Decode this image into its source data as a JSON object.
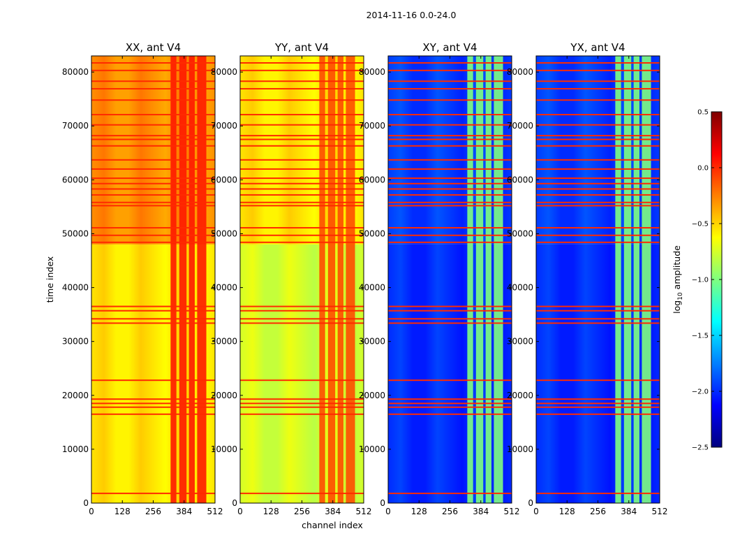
{
  "figure": {
    "suptitle": "2014-11-16 0.0-24.0",
    "xlabel": "channel index",
    "ylabel": "time index",
    "colorbar_label": "log10 amplitude",
    "colorbar_label_base": "log",
    "colorbar_label_sub": "10",
    "colorbar_label_rest": " amplitude",
    "colormap": "jet",
    "colormap_stops": [
      "#00007f",
      "#0000ff",
      "#007fff",
      "#00ffff",
      "#7fff7f",
      "#ffff00",
      "#ff7f00",
      "#ff0000",
      "#7f0000"
    ]
  },
  "chart_data": {
    "type": "heatmap",
    "x_range": [
      0,
      512
    ],
    "y_range": [
      0,
      83000
    ],
    "x_ticks": [
      0,
      128,
      256,
      384,
      512
    ],
    "x_tick_labels": [
      "0",
      "128",
      "256",
      "384",
      "512"
    ],
    "y_ticks": [
      0,
      10000,
      20000,
      30000,
      40000,
      50000,
      60000,
      70000,
      80000
    ],
    "y_tick_labels": [
      "0",
      "10000",
      "20000",
      "30000",
      "40000",
      "50000",
      "60000",
      "70000",
      "80000"
    ],
    "color_range": [
      -2.5,
      0.5
    ],
    "color_ticks": [
      0.5,
      0.0,
      -0.5,
      -1.0,
      -1.5,
      -2.0,
      -2.5
    ],
    "color_tick_labels": [
      "0.5",
      "0.0",
      "−0.5",
      "−1.0",
      "−1.5",
      "−2.0",
      "−2.5"
    ],
    "panels": [
      {
        "title": "XX, ant V4",
        "base_low": -0.55,
        "base_high": -0.3,
        "change_time": 48000,
        "band_value": 0.05
      },
      {
        "title": "YY, ant V4",
        "base_low": -0.75,
        "base_high": -0.55,
        "change_time": 48000,
        "band_value": -0.1
      },
      {
        "title": "XY, ant V4",
        "base_low": -2.0,
        "base_high": -1.95,
        "change_time": 48000,
        "band_value": -1.0
      },
      {
        "title": "YX, ant V4",
        "base_low": -2.0,
        "base_high": -1.95,
        "change_time": 48000,
        "band_value": -1.0
      }
    ],
    "rfi_channel_bands": [
      [
        328,
        352
      ],
      [
        364,
        394
      ],
      [
        404,
        428
      ],
      [
        438,
        476
      ]
    ],
    "flagged_time_rows": [
      1800,
      16500,
      17800,
      18500,
      19300,
      22800,
      33400,
      34200,
      35700,
      36500,
      48400,
      49700,
      51100,
      55200,
      55800,
      57200,
      58300,
      59300,
      60300,
      62000,
      63700,
      66300,
      67500,
      68200,
      70200,
      72100,
      74800,
      76900,
      78300,
      80300,
      81700
    ],
    "flag_value": 0.0
  }
}
